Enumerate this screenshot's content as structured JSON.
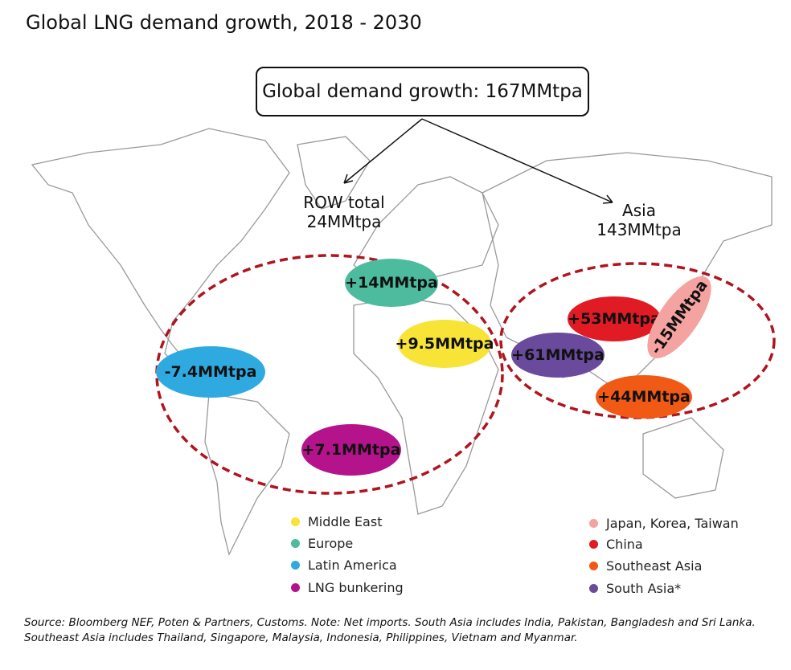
{
  "title": "Global LNG demand growth, 2018 - 2030",
  "global_box": "Global demand growth: 167MMtpa",
  "row_total": {
    "line1": "ROW total",
    "line2": "24MMtpa"
  },
  "asia_total": {
    "line1": "Asia",
    "line2": "143MMtpa"
  },
  "bubbles": {
    "europe": {
      "label": "+14MMtpa",
      "color": "#4dbb9e"
    },
    "middle_east": {
      "label": "+9.5MMtpa",
      "color": "#f7e436"
    },
    "latin_america": {
      "label": "-7.4MMtpa",
      "color": "#2eaae1"
    },
    "lng_bunkering": {
      "label": "+7.1MMtpa",
      "color": "#b5138c"
    },
    "china": {
      "label": "+53MMtpa",
      "color": "#e01b24"
    },
    "south_asia": {
      "label": "+61MMtpa",
      "color": "#6a4a9c"
    },
    "japan_korea_taiwan": {
      "label": "-15MMtpa",
      "color": "#f4a3a0"
    },
    "southeast_asia": {
      "label": "+44MMtpa",
      "color": "#f05a14"
    }
  },
  "legend_left": [
    {
      "label": "Middle East",
      "color": "#f7e436"
    },
    {
      "label": "Europe",
      "color": "#4dbb9e"
    },
    {
      "label": "Latin America",
      "color": "#2eaae1"
    },
    {
      "label": "LNG bunkering",
      "color": "#b5138c"
    }
  ],
  "legend_right": [
    {
      "label": "Japan, Korea, Taiwan",
      "color": "#f4a3a0"
    },
    {
      "label": "China",
      "color": "#e01b24"
    },
    {
      "label": "Southeast Asia",
      "color": "#f05a14"
    },
    {
      "label": "South Asia*",
      "color": "#6a4a9c"
    }
  ],
  "source": {
    "line1": "Source: Bloomberg NEF, Poten & Partners, Customs. Note: Net imports. South Asia includes India, Pakistan, Bangladesh and Sri Lanka.",
    "line2": "Southeast Asia includes Thailand, Singapore, Malaysia, Indonesia, Philippines, Vietnam and Myanmar."
  }
}
